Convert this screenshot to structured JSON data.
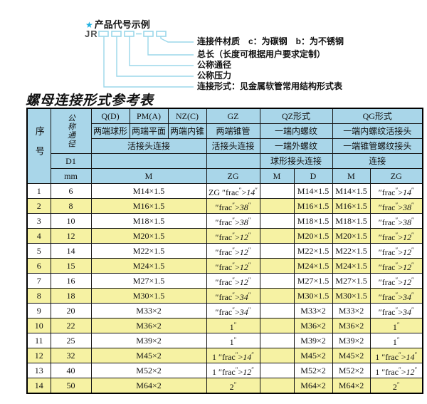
{
  "colors": {
    "accent_cyan": "#1fb0e0",
    "line_cyan": "#9bd7ea",
    "header_blue": "#a9d6e9",
    "row_yellow": "#f6f2a3",
    "border": "#141414"
  },
  "diagram": {
    "star": "★",
    "heading": "产品代号示例",
    "prefix": "JR",
    "labels": [
      "连接件材质　c：为碳钢　b：为不锈钢",
      "总长（长度可根据用户要求定制）",
      "公称通径",
      "公称压力",
      "连接形式：见金属软管常用结构形式表"
    ]
  },
  "table": {
    "title": "螺母连接形式参考表",
    "header": {
      "col_no": "序号",
      "col_dn": "公称通径",
      "d1": "D1",
      "unit": "mm",
      "top": [
        "Q(D)",
        "PM(A)",
        "NZ(C)",
        "GZ",
        "QZ形式",
        "QG形式"
      ],
      "desc1": [
        "两端球形",
        "两端平面",
        "两端内锥",
        "两端锥管",
        "一端内螺纹",
        "一端内螺纹活接头"
      ],
      "desc2": [
        "活接头连接",
        "活接头连接",
        "一端外螺纹",
        "一端锥管螺纹接头"
      ],
      "desc3": [
        "球形接头连接",
        "连接"
      ],
      "units": [
        "M",
        "ZG",
        "M",
        "D",
        "M",
        "ZG"
      ]
    },
    "rows": [
      {
        "no": "1",
        "mm": "6",
        "m": "M14×1.5",
        "zg": "ZG 1/4\"",
        "qz_m": "",
        "qz_d": "M14×1.5",
        "qg_m": "M14×1.5",
        "qg_zg": "1/4\""
      },
      {
        "no": "2",
        "mm": "8",
        "m": "M16×1.5",
        "zg": "3/8\"",
        "qz_m": "",
        "qz_d": "M16×1.5",
        "qg_m": "M16×1.5",
        "qg_zg": "3/8\""
      },
      {
        "no": "3",
        "mm": "10",
        "m": "M18×1.5",
        "zg": "3/8\"",
        "qz_m": "",
        "qz_d": "M18×1.5",
        "qg_m": "M18×1.5",
        "qg_zg": "3/8\""
      },
      {
        "no": "4",
        "mm": "12",
        "m": "M20×1.5",
        "zg": "1/2\"",
        "qz_m": "",
        "qz_d": "M20×1.5",
        "qg_m": "M20×1.5",
        "qg_zg": "1/2\""
      },
      {
        "no": "5",
        "mm": "14",
        "m": "M22×1.5",
        "zg": "1/2\"",
        "qz_m": "",
        "qz_d": "M22×1.5",
        "qg_m": "M22×1.5",
        "qg_zg": "1/2\""
      },
      {
        "no": "6",
        "mm": "15",
        "m": "M24×1.5",
        "zg": "1/2\"",
        "qz_m": "",
        "qz_d": "M24×1.5",
        "qg_m": "M24×1.5",
        "qg_zg": "1/2\""
      },
      {
        "no": "7",
        "mm": "16",
        "m": "M27×1.5",
        "zg": "1/2\"",
        "qz_m": "",
        "qz_d": "M27×1.5",
        "qg_m": "M27×1.5",
        "qg_zg": "1/2\""
      },
      {
        "no": "8",
        "mm": "18",
        "m": "M30×1.5",
        "zg": "3/4\"",
        "qz_m": "",
        "qz_d": "M30×1.5",
        "qg_m": "M30×1.5",
        "qg_zg": "3/4\""
      },
      {
        "no": "9",
        "mm": "20",
        "m": "M33×2",
        "zg": "3/4\"",
        "qz_m": "",
        "qz_d": "M33×2",
        "qg_m": "M33×2",
        "qg_zg": "3/4\""
      },
      {
        "no": "10",
        "mm": "22",
        "m": "M36×2",
        "zg": "1\"",
        "qz_m": "",
        "qz_d": "M36×2",
        "qg_m": "M36×2",
        "qg_zg": "1\""
      },
      {
        "no": "11",
        "mm": "25",
        "m": "M39×2",
        "zg": "1\"",
        "qz_m": "",
        "qz_d": "M39×2",
        "qg_m": "M39×2",
        "qg_zg": "1\""
      },
      {
        "no": "12",
        "mm": "32",
        "m": "M45×2",
        "zg": "1 1/4\"",
        "qz_m": "",
        "qz_d": "M45×2",
        "qg_m": "M45×2",
        "qg_zg": "1 1/4\""
      },
      {
        "no": "13",
        "mm": "40",
        "m": "M52×2",
        "zg": "1 1/2\"",
        "qz_m": "",
        "qz_d": "M52×2",
        "qg_m": "M52×2",
        "qg_zg": "1 1/2\""
      },
      {
        "no": "14",
        "mm": "50",
        "m": "M64×2",
        "zg": "2\"",
        "qz_m": "",
        "qz_d": "M64×2",
        "qg_m": "M64×2",
        "qg_zg": "2\""
      }
    ]
  }
}
